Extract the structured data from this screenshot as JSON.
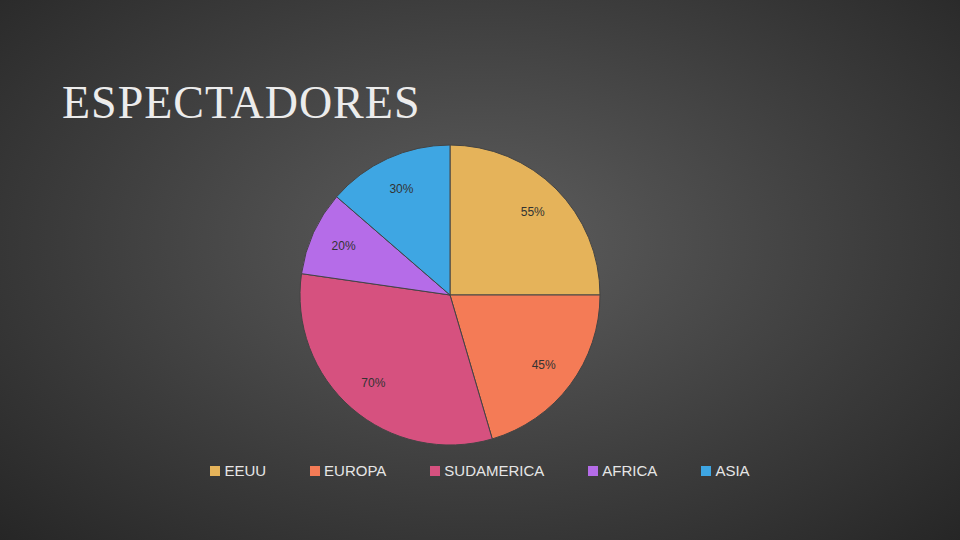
{
  "chart_data": {
    "type": "pie",
    "title": "ESPECTADORES",
    "categories": [
      "EEUU",
      "EUROPA",
      "SUDAMERICA",
      "AFRICA",
      "ASIA"
    ],
    "values": [
      55,
      45,
      70,
      20,
      30
    ],
    "value_labels": [
      "55%",
      "45%",
      "70%",
      "20%",
      "30%"
    ],
    "colors": [
      "#e5b35a",
      "#f47b56",
      "#d6517f",
      "#b56ce8",
      "#3ea6e3"
    ],
    "data_labels": true,
    "legend": "bottom"
  }
}
